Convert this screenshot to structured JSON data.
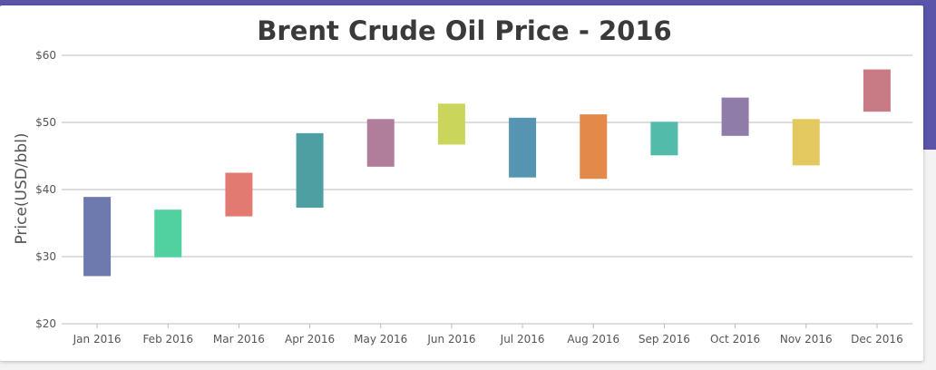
{
  "chart_data": {
    "type": "range_bar",
    "title": "Brent Crude Oil Price - 2016",
    "xlabel": "",
    "ylabel": "Price(USD/bbl)",
    "ylim": [
      20,
      60
    ],
    "yticks": [
      20,
      30,
      40,
      50,
      60
    ],
    "ytick_labels": [
      "$20",
      "$30",
      "$40",
      "$50",
      "$60"
    ],
    "grid": true,
    "legend": "none",
    "categories": [
      "Jan 2016",
      "Feb 2016",
      "Mar 2016",
      "Apr 2016",
      "May 2016",
      "Jun 2016",
      "Jul 2016",
      "Aug 2016",
      "Sep 2016",
      "Oct 2016",
      "Nov 2016",
      "Dec 2016"
    ],
    "low": [
      27.1,
      29.9,
      36.0,
      37.3,
      43.4,
      46.7,
      41.8,
      41.6,
      45.1,
      48.0,
      43.6,
      51.6
    ],
    "high": [
      38.9,
      37.0,
      42.5,
      48.4,
      50.5,
      52.8,
      50.7,
      51.2,
      50.1,
      53.7,
      50.5,
      57.9
    ],
    "colors": [
      "#6e7aae",
      "#52d1a0",
      "#e37a72",
      "#4e9fa2",
      "#b07e9b",
      "#c9d65b",
      "#5595b1",
      "#e38a4b",
      "#52bba9",
      "#8f7ca8",
      "#e3c95f",
      "#c87b84"
    ]
  }
}
